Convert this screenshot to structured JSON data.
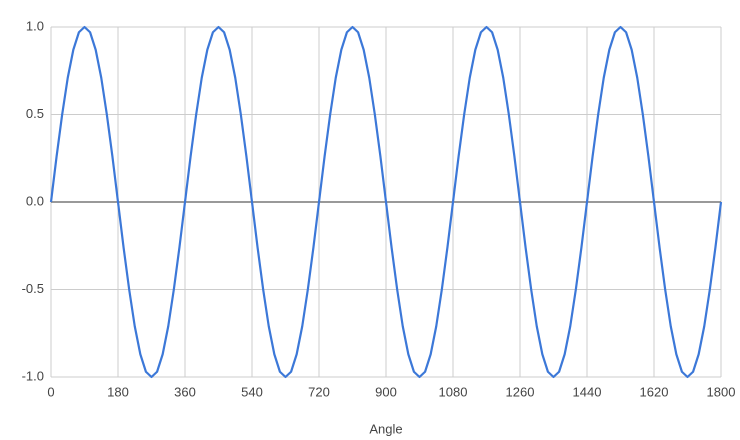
{
  "chart_data": {
    "type": "line",
    "xlabel": "Angle",
    "color": "#3c78d8",
    "grid": true,
    "x": [
      0,
      15,
      30,
      45,
      60,
      75,
      90,
      105,
      120,
      135,
      150,
      165,
      180,
      195,
      210,
      225,
      240,
      255,
      270,
      285,
      300,
      315,
      330,
      345,
      360,
      375,
      390,
      405,
      420,
      435,
      450,
      465,
      480,
      495,
      510,
      525,
      540,
      555,
      570,
      585,
      600,
      615,
      630,
      645,
      660,
      675,
      690,
      705,
      720,
      735,
      750,
      765,
      780,
      795,
      810,
      825,
      840,
      855,
      870,
      885,
      900,
      915,
      930,
      945,
      960,
      975,
      990,
      1005,
      1020,
      1035,
      1050,
      1065,
      1080,
      1095,
      1110,
      1125,
      1140,
      1155,
      1170,
      1185,
      1200,
      1215,
      1230,
      1245,
      1260,
      1275,
      1290,
      1305,
      1320,
      1335,
      1350,
      1365,
      1380,
      1395,
      1410,
      1425,
      1440,
      1455,
      1470,
      1485,
      1500,
      1515,
      1530,
      1545,
      1560,
      1575,
      1590,
      1605,
      1620,
      1635,
      1650,
      1665,
      1680,
      1695,
      1710,
      1725,
      1740,
      1755,
      1770,
      1785,
      1800
    ],
    "values": [
      0,
      0.26,
      0.5,
      0.71,
      0.87,
      0.97,
      1,
      0.97,
      0.87,
      0.71,
      0.5,
      0.26,
      0,
      -0.26,
      -0.5,
      -0.71,
      -0.87,
      -0.97,
      -1,
      -0.97,
      -0.87,
      -0.71,
      -0.5,
      -0.26,
      0,
      0.26,
      0.5,
      0.71,
      0.87,
      0.97,
      1,
      0.97,
      0.87,
      0.71,
      0.5,
      0.26,
      0,
      -0.26,
      -0.5,
      -0.71,
      -0.87,
      -0.97,
      -1,
      -0.97,
      -0.87,
      -0.71,
      -0.5,
      -0.26,
      0,
      0.26,
      0.5,
      0.71,
      0.87,
      0.97,
      1,
      0.97,
      0.87,
      0.71,
      0.5,
      0.26,
      0,
      -0.26,
      -0.5,
      -0.71,
      -0.87,
      -0.97,
      -1,
      -0.97,
      -0.87,
      -0.71,
      -0.5,
      -0.26,
      0,
      0.26,
      0.5,
      0.71,
      0.87,
      0.97,
      1,
      0.97,
      0.87,
      0.71,
      0.5,
      0.26,
      0,
      -0.26,
      -0.5,
      -0.71,
      -0.87,
      -0.97,
      -1,
      -0.97,
      -0.87,
      -0.71,
      -0.5,
      -0.26,
      0,
      0.26,
      0.5,
      0.71,
      0.87,
      0.97,
      1,
      0.97,
      0.87,
      0.71,
      0.5,
      0.26,
      0,
      -0.26,
      -0.5,
      -0.71,
      -0.87,
      -0.97,
      -1,
      -0.97,
      -0.87,
      -0.71,
      -0.5,
      -0.26,
      0
    ],
    "xlim": [
      0,
      1800
    ],
    "xticks": [
      0,
      180,
      360,
      540,
      720,
      900,
      1080,
      1260,
      1440,
      1620,
      1800
    ],
    "ylim": [
      -1,
      1
    ],
    "yticks": [
      {
        "value": -1,
        "label": "-1.0"
      },
      -0.5,
      {
        "value": 0,
        "label": "0.0"
      },
      0.5,
      {
        "value": 1,
        "label": "1.0"
      }
    ]
  }
}
